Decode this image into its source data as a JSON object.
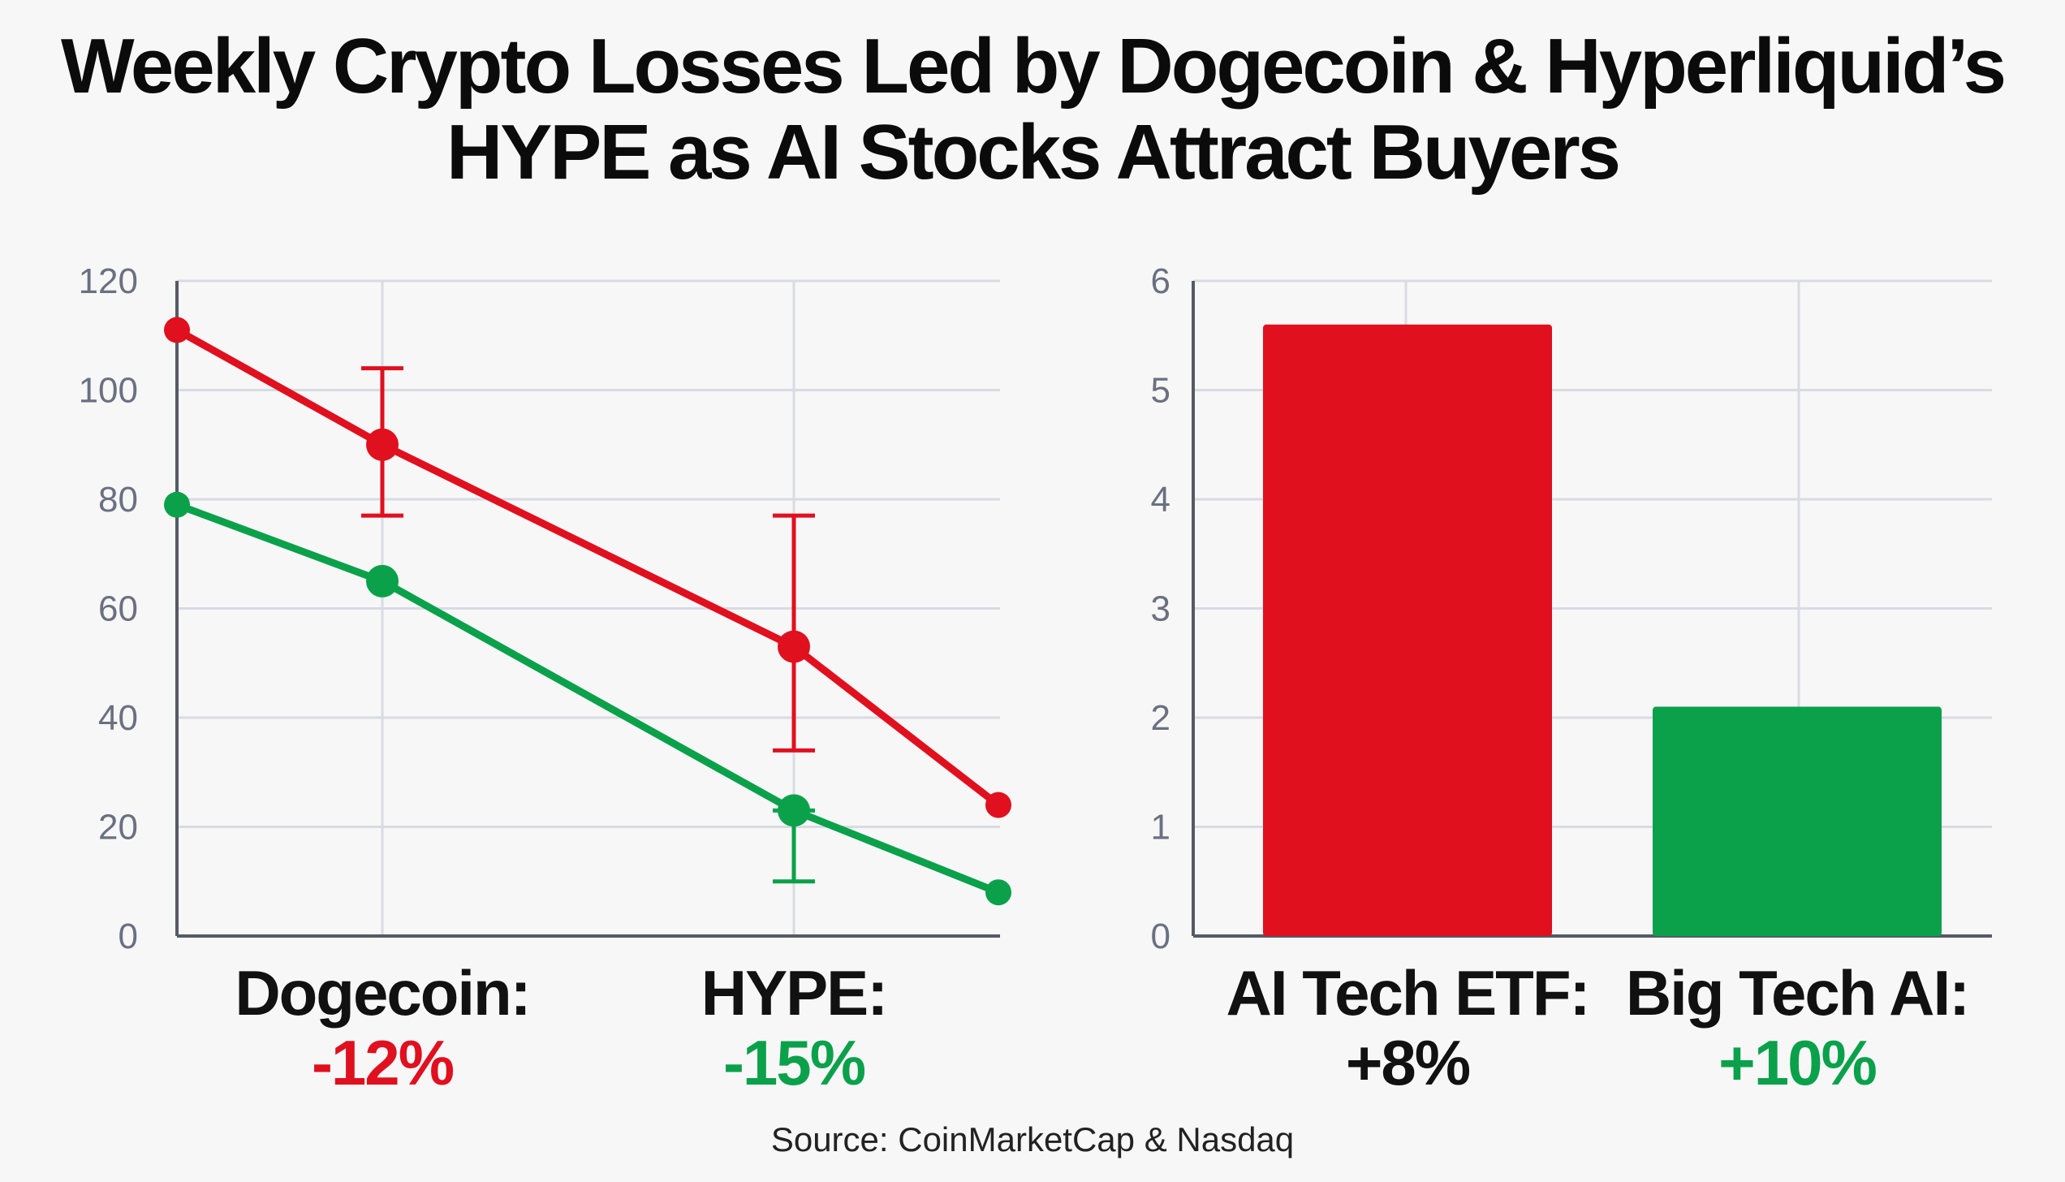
{
  "title_line1": "Weekly Crypto Losses Led by Dogecoin & Hyperliquid’s",
  "title_line2": "HYPE as AI Stocks Attract Buyers",
  "source": "Source: CoinMarketCap & Nasdaq",
  "colors": {
    "red": "#e0101e",
    "green": "#0aa14a",
    "grid": "#d8dbe2",
    "axis": "#555a66"
  },
  "chart_data": [
    {
      "type": "line",
      "ylim": [
        0,
        120
      ],
      "yticks": [
        0,
        20,
        40,
        60,
        80,
        100,
        120
      ],
      "x": [
        0,
        1,
        2,
        3,
        4
      ],
      "series": [
        {
          "color": "#e0101e",
          "values": [
            111,
            90,
            null,
            53,
            24
          ],
          "error_bars": [
            null,
            [
              77,
              104
            ],
            null,
            [
              34,
              77
            ],
            null
          ]
        },
        {
          "color": "#0aa14a",
          "values": [
            79,
            65,
            null,
            23,
            8
          ],
          "error_bars": [
            null,
            null,
            null,
            [
              10,
              23
            ],
            null
          ]
        }
      ],
      "annotations": [
        {
          "label": "Dogecoin:",
          "value": "-12%",
          "value_color": "#e0101e"
        },
        {
          "label": "HYPE:",
          "value": "-15%",
          "value_color": "#0aa14a"
        }
      ]
    },
    {
      "type": "bar",
      "ylim": [
        0,
        6
      ],
      "yticks": [
        0,
        1,
        2,
        3,
        4,
        5,
        6
      ],
      "values": [
        5.6,
        2.1
      ],
      "colors": [
        "#e0101e",
        "#0aa14a"
      ],
      "annotations": [
        {
          "label": "AI Tech ETF:",
          "value": "+8%",
          "value_color": "#111111"
        },
        {
          "label": "Big Tech AI:",
          "value": "+10%",
          "value_color": "#0aa14a"
        }
      ]
    }
  ]
}
